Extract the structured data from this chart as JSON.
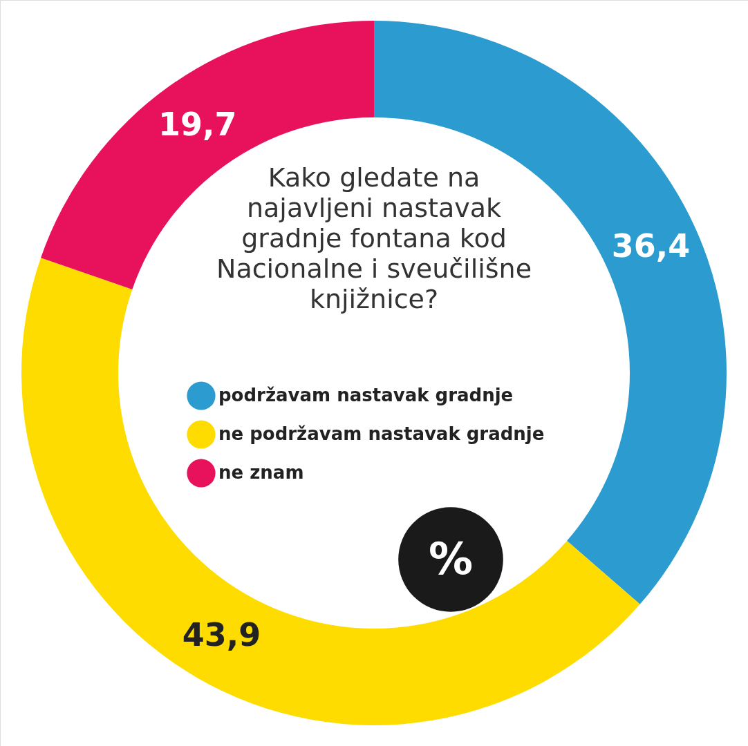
{
  "chart_data": {
    "type": "donut",
    "title": "Kako gledate na najavljeni nastavak gradnje fontana kod Nacionalne i sveučilišne knjižnice?",
    "categories": [
      "podržavam nastavak gradnje",
      "ne podržavam nastavak gradnje",
      "ne znam"
    ],
    "values": [
      36.4,
      43.9,
      19.7
    ],
    "colors": [
      "#2b9bd0",
      "#ffdc00",
      "#e8125c"
    ],
    "value_labels": [
      "36,4",
      "43,9",
      "19,7"
    ],
    "legend": "center",
    "annotations": [
      "%"
    ]
  }
}
